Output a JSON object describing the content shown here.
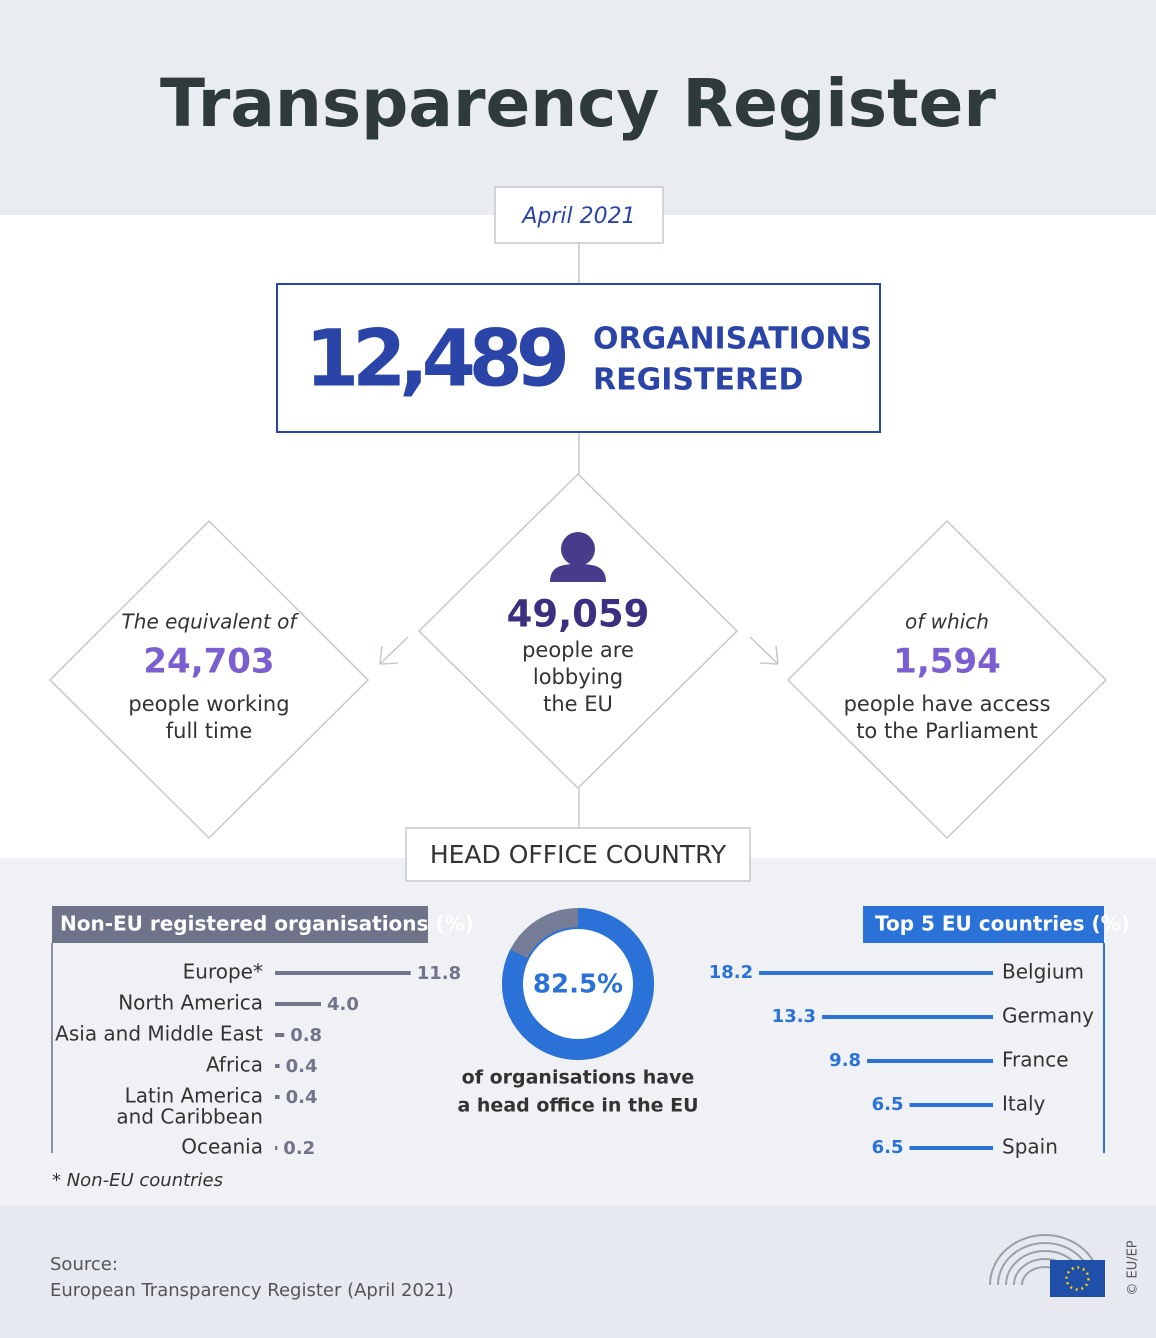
{
  "title": "Transparency Register",
  "date": "April 2021",
  "registered": {
    "number": "12,489",
    "lines": [
      "ORGANISATIONS",
      "REGISTERED"
    ]
  },
  "lobbyists": {
    "number": "49,059",
    "lines": [
      "people are",
      "lobbying",
      "the EU"
    ]
  },
  "full_time": {
    "intro": "The equivalent of",
    "number": "24,703",
    "lines": [
      "people working",
      "full time"
    ]
  },
  "access": {
    "intro": "of which",
    "number": "1,594",
    "lines": [
      "people have access",
      "to the Parliament"
    ]
  },
  "section_title": "HEAD OFFICE COUNTRY",
  "non_eu": {
    "title": "Non-EU registered organisations (%)",
    "rows": [
      {
        "name": "Europe*",
        "value": 11.8,
        "label": "11.8"
      },
      {
        "name": "North America",
        "value": 4,
        "label": "4.0"
      },
      {
        "name": "Asia and Middle East",
        "value": 0.8,
        "label": "0.8"
      },
      {
        "name": "Africa",
        "value": 0.4,
        "label": "0.4"
      },
      {
        "name": [
          "Latin America",
          "and Caribbean"
        ],
        "value": 0.4,
        "label": "0.4"
      },
      {
        "name": "Oceania",
        "value": 0.2,
        "label": "0.2"
      }
    ],
    "footnote": "* Non-EU countries"
  },
  "eu_share": {
    "value": 82.5,
    "label": "82.5%",
    "lines": [
      "of organisations have",
      "a head office in the EU"
    ]
  },
  "top_eu": {
    "title": "Top 5 EU countries (%)",
    "rows": [
      {
        "name": "Belgium",
        "value": 18.2
      },
      {
        "name": "Germany",
        "value": 13.3
      },
      {
        "name": "France",
        "value": 9.8
      },
      {
        "name": "Italy",
        "value": 6.5
      },
      {
        "name": "Spain",
        "value": 6.5
      }
    ]
  },
  "source": [
    "Source:",
    "European Transparency Register (April 2021)"
  ],
  "credit": "© EU/EP"
}
